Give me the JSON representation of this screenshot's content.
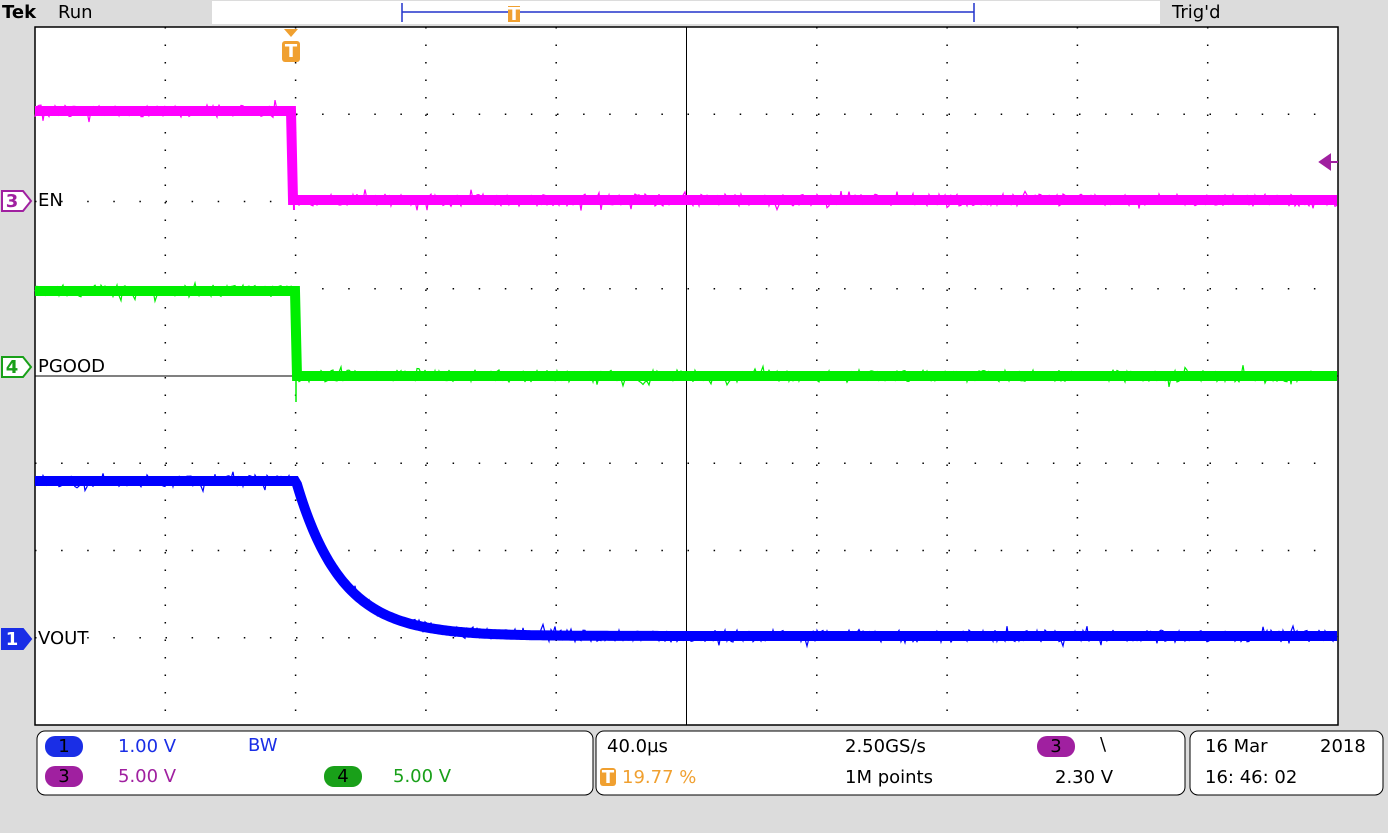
{
  "header": {
    "brand": "Tek",
    "status": "Run",
    "trigger_state": "Trig'd",
    "trigger_marker": "T",
    "record_marker": "T"
  },
  "channels": [
    {
      "number": "3",
      "label": "EN"
    },
    {
      "number": "4",
      "label": "PGOOD"
    },
    {
      "number": "1",
      "label": "VOUT"
    }
  ],
  "readouts": {
    "ch1": {
      "number": "1",
      "scale": "1.00 V",
      "bandwidth": "BW"
    },
    "ch3": {
      "number": "3",
      "scale": "5.00 V"
    },
    "ch4": {
      "number": "4",
      "scale": "5.00 V"
    },
    "horizontal": {
      "time_per_div": "40.0µs",
      "trigger_marker": "T",
      "trigger_position": "19.77 %",
      "sample_rate": "2.50GS/s",
      "record_length": "1M points"
    },
    "trigger": {
      "source": "3",
      "slope": "\\",
      "level": "2.30 V"
    },
    "date": {
      "day_month": "16 Mar",
      "year": "2018",
      "time": "16: 46: 02"
    }
  }
}
